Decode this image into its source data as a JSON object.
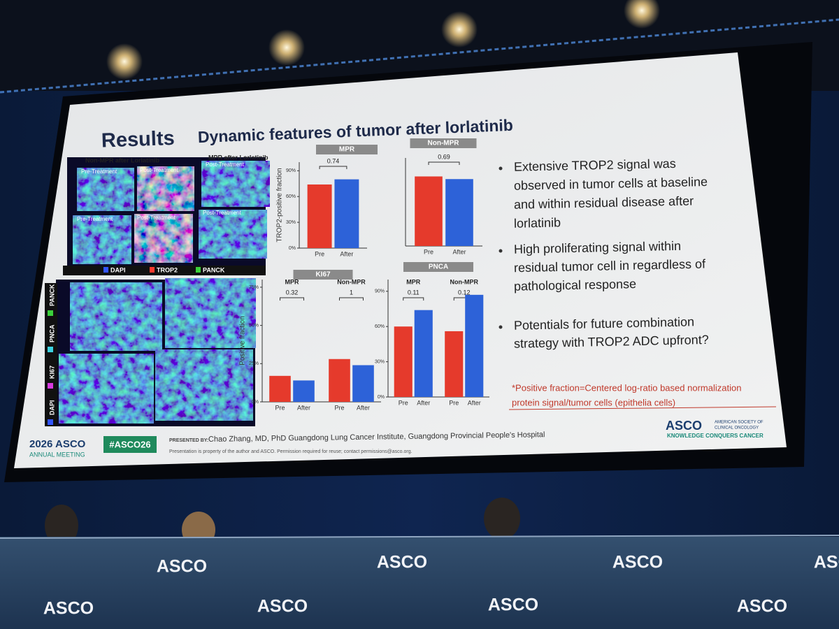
{
  "slide": {
    "heading": "Results",
    "title": "Dynamic features of tumor after lorlatinib",
    "images": {
      "group1": "Non-MPR after Lorlatinib",
      "group2": "MPR after Lorlatinib",
      "labels": [
        "Pre-Treatment",
        "Post-Treatment",
        "Post-Treatment",
        "Pre-Treatment",
        "Post-Treatment",
        "Post-Treatment"
      ],
      "legend": [
        "DAPI",
        "TROP2",
        "PANCK"
      ],
      "side_legend": [
        "DAPI",
        "KI67",
        "PNCA",
        "PANCK"
      ]
    },
    "charts": [
      {
        "title": "MPR",
        "ylabel": "TROP2-positive fraction",
        "ylim": [
          0,
          100
        ],
        "yticks": [
          {
            "value": 0,
            "label": "0%"
          },
          {
            "value": 30,
            "label": "30%"
          },
          {
            "value": 60,
            "label": "60%"
          },
          {
            "value": 90,
            "label": "90%"
          }
        ],
        "colors": [
          "#e53a2c",
          "#2d62d8"
        ],
        "groups": [
          {
            "p": 0.74,
            "categories": [
              "Pre",
              "After"
            ],
            "values": [
              74,
              80
            ]
          }
        ]
      },
      {
        "title": "Non-MPR",
        "ylim": [
          0,
          100
        ],
        "colors": [
          "#e53a2c",
          "#2d62d8"
        ],
        "groups": [
          {
            "p": 0.69,
            "categories": [
              "Pre",
              "After"
            ],
            "values": [
              79,
              76
            ]
          }
        ]
      },
      {
        "title": "KI67",
        "ylabel": "Positive fraction",
        "ylim": [
          0,
          80
        ],
        "yticks": [
          {
            "value": 0,
            "label": "0%"
          },
          {
            "value": 25,
            "label": "25%"
          },
          {
            "value": 50,
            "label": "50%"
          },
          {
            "value": 75,
            "label": "75%"
          }
        ],
        "colors": [
          "#e53a2c",
          "#2d62d8"
        ],
        "groups": [
          {
            "name": "MPR",
            "p": 0.32,
            "categories": [
              "Pre",
              "After"
            ],
            "values": [
              17,
              14
            ]
          },
          {
            "name": "Non-MPR",
            "p": 1,
            "categories": [
              "Pre",
              "After"
            ],
            "values": [
              28,
              24
            ]
          }
        ]
      },
      {
        "title": "PNCA",
        "ylim": [
          0,
          100
        ],
        "yticks": [
          {
            "value": 0,
            "label": "0%"
          },
          {
            "value": 30,
            "label": "30%"
          },
          {
            "value": 60,
            "label": "60%"
          },
          {
            "value": 90,
            "label": "90%"
          }
        ],
        "colors": [
          "#e53a2c",
          "#2d62d8"
        ],
        "groups": [
          {
            "name": "MPR",
            "p": 0.11,
            "categories": [
              "Pre",
              "After"
            ],
            "values": [
              60,
              74
            ]
          },
          {
            "name": "Non-MPR",
            "p": 0.12,
            "categories": [
              "Pre",
              "After"
            ],
            "values": [
              56,
              87
            ]
          }
        ]
      }
    ],
    "bullets": [
      [
        "Extensive TROP2 signal was",
        "observed in tumor cells at baseline",
        "and within residual disease after",
        "lorlatinib"
      ],
      [
        "High proliferating signal within",
        "residual tumor cell in regardless of",
        "pathological response"
      ],
      [
        "Potentials for future combination",
        "strategy with TROP2 ADC upfront?"
      ]
    ],
    "footnote": [
      "*Positive fraction=Centered log-ratio based normalization",
      "protein signal/tumor cells (epithelia cells)"
    ],
    "footer": {
      "meeting": "2026 ASCO",
      "meeting_sub": "ANNUAL MEETING",
      "hashtag": "#ASCO26",
      "presented_by": "PRESENTED BY:",
      "presenter": "Chao Zhang, MD, PhD   Guangdong Lung Cancer Institute, Guangdong Provincial People's Hospital",
      "notice": "Presentation is property of the author and ASCO. Permission required for reuse; contact permissions@asco.org.",
      "org": "ASCO",
      "org_name": [
        "AMERICAN SOCIETY OF",
        "CLINICAL ONCOLOGY"
      ],
      "tagline": "KNOWLEDGE CONQUERS CANCER"
    }
  },
  "banner": {
    "logos": [
      "ASCO",
      "ASCO",
      "ASCO",
      "ASCO",
      "ASCO",
      "ASCO",
      "ASCO",
      "ASCO"
    ]
  }
}
